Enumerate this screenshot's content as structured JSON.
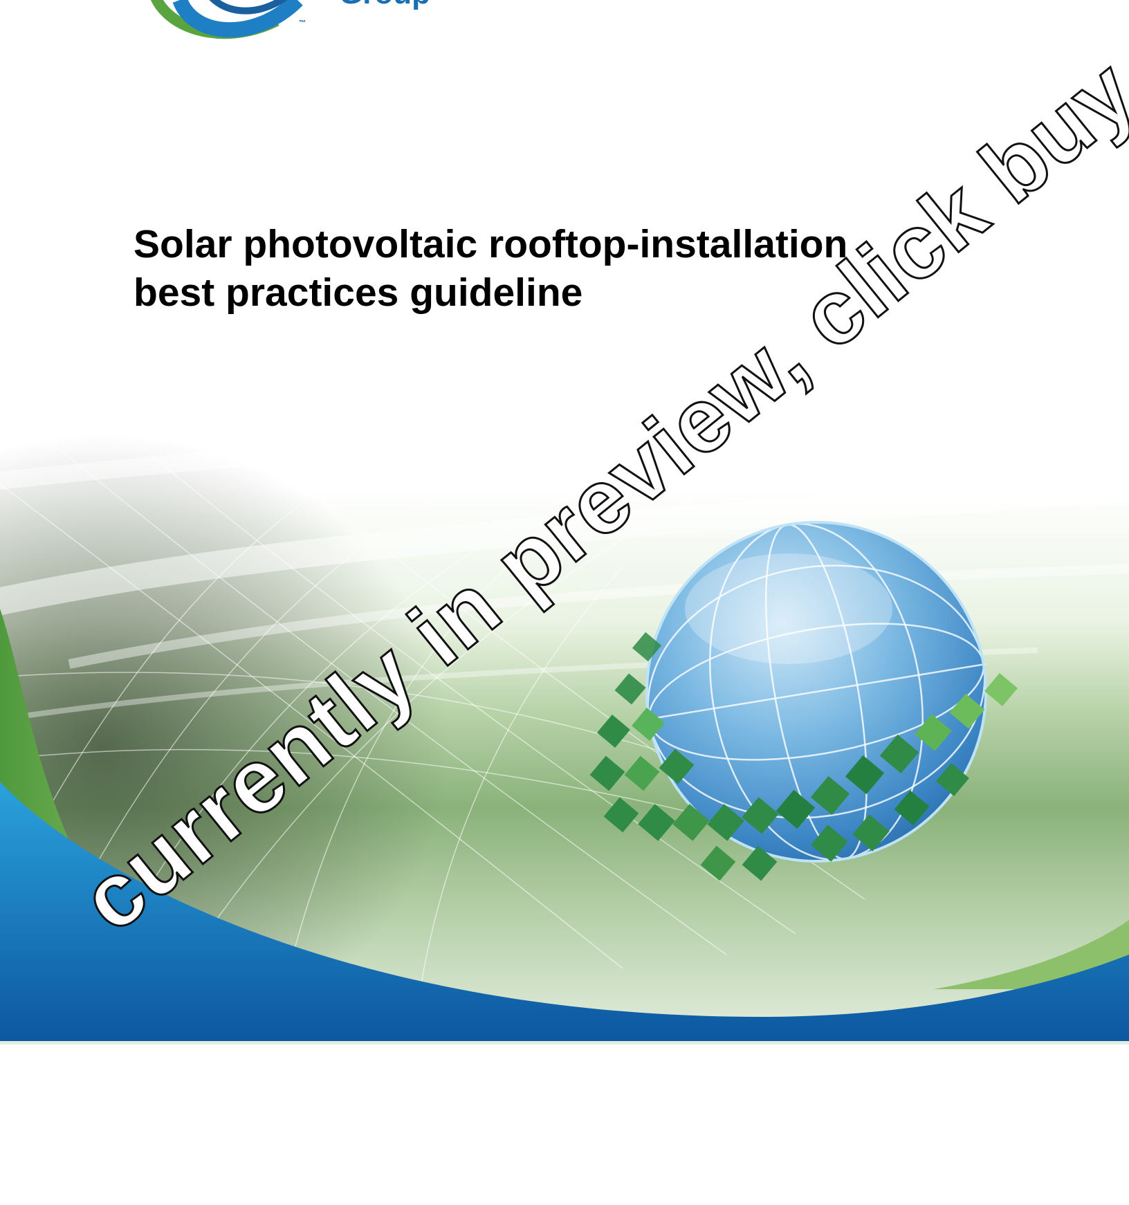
{
  "document": {
    "logo_mark": "group-logo",
    "logo_word": "Group",
    "trademark": "™",
    "title_line_1": "Solar photovoltaic rooftop-installation",
    "title_line_2": "best practices guideline"
  },
  "watermark": {
    "text": "currently in preview, click buy full version"
  },
  "colors": {
    "blue_band": "#1565b0",
    "green_band": "#5c9d45",
    "globe_blue": "#4d9ad6",
    "tile_green": "#2f8b46"
  }
}
